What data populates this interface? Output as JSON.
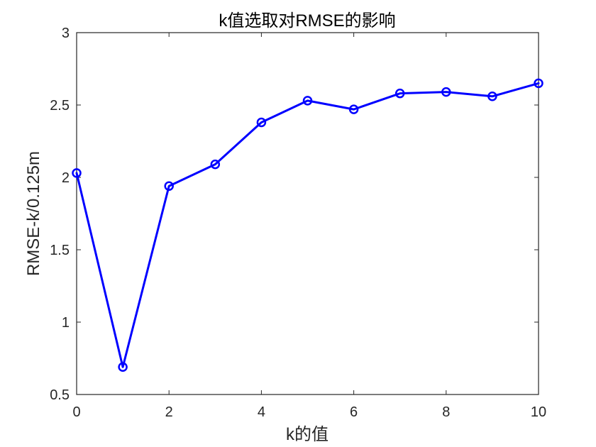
{
  "chart_data": {
    "type": "line",
    "title": "k值选取对RMSE的影响",
    "xlabel": "k的值",
    "ylabel": "RMSE-k/0.125m",
    "x": [
      0,
      1,
      2,
      3,
      4,
      5,
      6,
      7,
      8,
      9,
      10
    ],
    "series": [
      {
        "values": [
          2.03,
          0.69,
          1.94,
          2.09,
          2.38,
          2.53,
          2.47,
          2.58,
          2.59,
          2.56,
          2.65
        ],
        "color": "#0000FF",
        "marker": "circle"
      }
    ],
    "xlim": [
      0,
      10
    ],
    "ylim": [
      0.5,
      3
    ],
    "xticks": [
      "0",
      "2",
      "4",
      "6",
      "8",
      "10"
    ],
    "yticks": [
      "0.5",
      "1",
      "1.5",
      "2",
      "2.5",
      "3"
    ],
    "grid": false
  }
}
